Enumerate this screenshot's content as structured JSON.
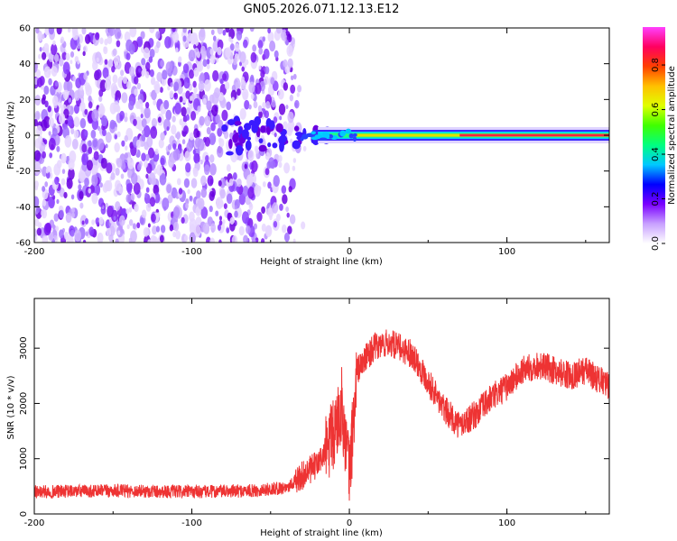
{
  "chart_data": [
    {
      "type": "heatmap",
      "title": "GN05.2026.071.12.13.E12",
      "xlabel": "Height of straight line (km)",
      "ylabel": "Frequency (Hz)",
      "xlim": [
        -200,
        165
      ],
      "ylim": [
        -60,
        60
      ],
      "x_ticks": [
        "-200",
        "-100",
        "0",
        "100"
      ],
      "x_tick_values": [
        -200,
        -100,
        0,
        100
      ],
      "y_ticks": [
        "60",
        "40",
        "20",
        "0",
        "-20",
        "-40",
        "-60"
      ],
      "y_tick_values": [
        60,
        40,
        20,
        0,
        -20,
        -40,
        -60
      ],
      "description_series": {
        "noise_region_x": [
          -200,
          -35
        ],
        "signal_line_x": [
          -35,
          165
        ],
        "signal_frequency_hz": 0
      },
      "colorbar": {
        "label": "Normalized spectral amplitude",
        "range": [
          0,
          0.97
        ],
        "ticks": [
          "0.0",
          "0.2",
          "0.4",
          "0.6",
          "0.8"
        ],
        "tick_values": [
          0.0,
          0.2,
          0.4,
          0.6,
          0.8
        ],
        "colors": [
          "#ffffff",
          "#c8a0ff",
          "#7a00ff",
          "#0000ff",
          "#00c8ff",
          "#00ff80",
          "#40ff00",
          "#e0ff00",
          "#ffc000",
          "#ff4000",
          "#ff0060",
          "#ff40ff"
        ]
      }
    },
    {
      "type": "line",
      "xlabel": "Height of straight line (km)",
      "ylabel": "SNR (10 * v/v)",
      "xlim": [
        -200,
        165
      ],
      "ylim": [
        0,
        3900
      ],
      "x_ticks": [
        "-200",
        "-100",
        "0",
        "100"
      ],
      "x_tick_values": [
        -200,
        -100,
        0,
        100
      ],
      "y_ticks": [
        "0",
        "1000",
        "2000",
        "3000"
      ],
      "y_tick_values": [
        0,
        1000,
        2000,
        3000
      ],
      "series": [
        {
          "name": "SNR",
          "color": "#ee3333",
          "x": [
            -200,
            -150,
            -100,
            -60,
            -40,
            -20,
            -10,
            -5,
            0,
            5,
            15,
            25,
            40,
            50,
            60,
            70,
            80,
            90,
            100,
            110,
            120,
            130,
            140,
            150,
            165
          ],
          "y": [
            400,
            420,
            400,
            420,
            480,
            900,
            1400,
            2000,
            700,
            2600,
            3000,
            3100,
            2900,
            2400,
            1900,
            1600,
            1800,
            2100,
            2300,
            2600,
            2700,
            2600,
            2500,
            2600,
            2300
          ]
        }
      ]
    }
  ],
  "colors": {
    "signal_line": "#ee3333"
  }
}
